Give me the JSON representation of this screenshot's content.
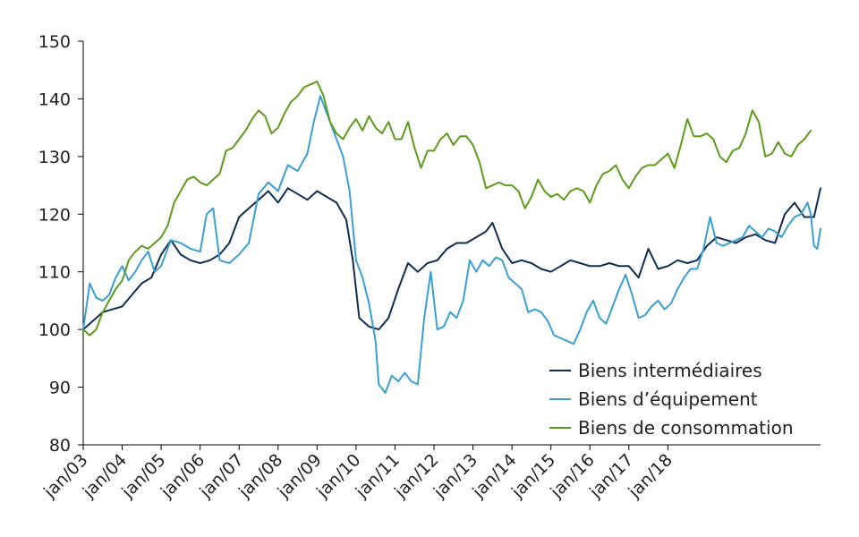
{
  "chart_data": {
    "type": "line",
    "title": "",
    "xlabel": "",
    "ylabel": "",
    "ylim": [
      80,
      150
    ],
    "yticks": [
      "80",
      "90",
      "100",
      "110",
      "120",
      "130",
      "140",
      "150"
    ],
    "xticks": [
      "jan/03",
      "jan/04",
      "jan/05",
      "jan/06",
      "jan/07",
      "jan/08",
      "jan/09",
      "jan/10",
      "jan/11",
      "jan/12",
      "jan/13",
      "jan/14",
      "jan/15",
      "jan/16",
      "jan/17",
      "jan/18"
    ],
    "x_unit": "months since jan/03",
    "legend_position": "bottom-right",
    "grid": false,
    "series": [
      {
        "name": "Biens intermédiaires",
        "color": "#0f2d52",
        "points": [
          [
            0,
            100
          ],
          [
            3,
            101.5
          ],
          [
            6,
            103
          ],
          [
            9,
            103.5
          ],
          [
            12,
            104
          ],
          [
            15,
            106
          ],
          [
            18,
            108
          ],
          [
            21,
            109
          ],
          [
            24,
            113
          ],
          [
            27,
            115.5
          ],
          [
            30,
            113
          ],
          [
            33,
            112
          ],
          [
            36,
            111.5
          ],
          [
            39,
            112
          ],
          [
            42,
            113
          ],
          [
            45,
            115
          ],
          [
            48,
            119.5
          ],
          [
            51,
            121
          ],
          [
            54,
            122.5
          ],
          [
            57,
            124
          ],
          [
            60,
            122
          ],
          [
            63,
            124.5
          ],
          [
            66,
            123.5
          ],
          [
            69,
            122.5
          ],
          [
            72,
            124
          ],
          [
            75,
            123
          ],
          [
            78,
            122
          ],
          [
            81,
            119
          ],
          [
            83,
            112
          ],
          [
            85,
            102
          ],
          [
            88,
            100.5
          ],
          [
            91,
            100
          ],
          [
            94,
            102
          ],
          [
            97,
            107
          ],
          [
            100,
            111.5
          ],
          [
            103,
            110
          ],
          [
            106,
            111.5
          ],
          [
            109,
            112
          ],
          [
            112,
            114
          ],
          [
            115,
            115
          ],
          [
            118,
            115
          ],
          [
            121,
            116
          ],
          [
            124,
            117
          ],
          [
            126,
            118.5
          ],
          [
            129,
            114
          ],
          [
            132,
            111.5
          ],
          [
            135,
            112
          ],
          [
            138,
            111.5
          ],
          [
            141,
            110.5
          ],
          [
            144,
            110
          ],
          [
            147,
            111
          ],
          [
            150,
            112
          ],
          [
            153,
            111.5
          ],
          [
            156,
            111
          ],
          [
            159,
            111
          ],
          [
            162,
            111.5
          ],
          [
            165,
            111
          ],
          [
            168,
            111
          ],
          [
            171,
            109
          ],
          [
            174,
            114
          ],
          [
            177,
            110.5
          ],
          [
            180,
            111
          ],
          [
            183,
            112
          ],
          [
            186,
            111.5
          ],
          [
            189,
            112
          ],
          [
            192,
            114.5
          ],
          [
            195,
            116
          ],
          [
            198,
            115.5
          ],
          [
            201,
            115
          ],
          [
            204,
            116
          ],
          [
            207,
            116.5
          ],
          [
            210,
            115.5
          ],
          [
            213,
            115
          ],
          [
            216,
            120
          ],
          [
            219,
            122
          ],
          [
            222,
            119.5
          ],
          [
            225,
            119.5
          ],
          [
            227,
            124.5
          ]
        ]
      },
      {
        "name": "Biens d’équipement",
        "color": "#3a9fd1",
        "points": [
          [
            0,
            100
          ],
          [
            2,
            108
          ],
          [
            4,
            105.5
          ],
          [
            6,
            105
          ],
          [
            8,
            106
          ],
          [
            10,
            109
          ],
          [
            12,
            111
          ],
          [
            14,
            108.5
          ],
          [
            16,
            110
          ],
          [
            18,
            112
          ],
          [
            20,
            113.5
          ],
          [
            22,
            110
          ],
          [
            24,
            111
          ],
          [
            27,
            115.5
          ],
          [
            30,
            115
          ],
          [
            33,
            114
          ],
          [
            36,
            113.5
          ],
          [
            38,
            120
          ],
          [
            40,
            121
          ],
          [
            42,
            112
          ],
          [
            45,
            111.5
          ],
          [
            48,
            113
          ],
          [
            51,
            115
          ],
          [
            54,
            123.5
          ],
          [
            57,
            125.5
          ],
          [
            60,
            124
          ],
          [
            63,
            128.5
          ],
          [
            66,
            127.5
          ],
          [
            69,
            130.5
          ],
          [
            71,
            136
          ],
          [
            73,
            140.5
          ],
          [
            75,
            137.5
          ],
          [
            78,
            133
          ],
          [
            80,
            130
          ],
          [
            82,
            124
          ],
          [
            84,
            112
          ],
          [
            86,
            109
          ],
          [
            88,
            104.5
          ],
          [
            90,
            98
          ],
          [
            91,
            90.5
          ],
          [
            93,
            89
          ],
          [
            95,
            92
          ],
          [
            97,
            91
          ],
          [
            99,
            92.5
          ],
          [
            101,
            91
          ],
          [
            103,
            90.5
          ],
          [
            105,
            102
          ],
          [
            107,
            110
          ],
          [
            109,
            100
          ],
          [
            111,
            100.5
          ],
          [
            113,
            103
          ],
          [
            115,
            102
          ],
          [
            117,
            105
          ],
          [
            119,
            112
          ],
          [
            121,
            110
          ],
          [
            123,
            112
          ],
          [
            125,
            111
          ],
          [
            127,
            112.5
          ],
          [
            129,
            112
          ],
          [
            131,
            109
          ],
          [
            133,
            108
          ],
          [
            135,
            107
          ],
          [
            137,
            103
          ],
          [
            139,
            103.5
          ],
          [
            141,
            103
          ],
          [
            143,
            101.5
          ],
          [
            145,
            99
          ],
          [
            147,
            98.5
          ],
          [
            149,
            98
          ],
          [
            151,
            97.5
          ],
          [
            153,
            100
          ],
          [
            155,
            103
          ],
          [
            157,
            105
          ],
          [
            159,
            102
          ],
          [
            161,
            101
          ],
          [
            163,
            104
          ],
          [
            165,
            107
          ],
          [
            167,
            109.5
          ],
          [
            169,
            106
          ],
          [
            171,
            102
          ],
          [
            173,
            102.5
          ],
          [
            175,
            104
          ],
          [
            177,
            105
          ],
          [
            179,
            103.5
          ],
          [
            181,
            104.5
          ],
          [
            183,
            107
          ],
          [
            185,
            109
          ],
          [
            187,
            110.5
          ],
          [
            189,
            110.5
          ],
          [
            191,
            114
          ],
          [
            193,
            119.5
          ],
          [
            195,
            115
          ],
          [
            197,
            114.5
          ],
          [
            199,
            115
          ],
          [
            201,
            115.5
          ],
          [
            203,
            116
          ],
          [
            205,
            118
          ],
          [
            207,
            117
          ],
          [
            209,
            116
          ],
          [
            211,
            117.5
          ],
          [
            213,
            117
          ],
          [
            215,
            116
          ],
          [
            217,
            118
          ],
          [
            219,
            119.5
          ],
          [
            221,
            120
          ],
          [
            223,
            122
          ],
          [
            224,
            120
          ],
          [
            225,
            114.5
          ],
          [
            226,
            114
          ],
          [
            227,
            117.5
          ]
        ]
      },
      {
        "name": "Biens de consommation",
        "color": "#5c9c1c",
        "points": [
          [
            0,
            100
          ],
          [
            2,
            99
          ],
          [
            4,
            100
          ],
          [
            6,
            103
          ],
          [
            8,
            105
          ],
          [
            10,
            107
          ],
          [
            12,
            108.5
          ],
          [
            14,
            112
          ],
          [
            16,
            113.5
          ],
          [
            18,
            114.5
          ],
          [
            20,
            114
          ],
          [
            22,
            115
          ],
          [
            24,
            116
          ],
          [
            26,
            118
          ],
          [
            28,
            122
          ],
          [
            30,
            124
          ],
          [
            32,
            126
          ],
          [
            34,
            126.5
          ],
          [
            36,
            125.5
          ],
          [
            38,
            125
          ],
          [
            40,
            126
          ],
          [
            42,
            127
          ],
          [
            44,
            131
          ],
          [
            46,
            131.5
          ],
          [
            48,
            133
          ],
          [
            50,
            134.5
          ],
          [
            52,
            136.5
          ],
          [
            54,
            138
          ],
          [
            56,
            137
          ],
          [
            58,
            134
          ],
          [
            60,
            135
          ],
          [
            62,
            137.5
          ],
          [
            64,
            139.5
          ],
          [
            66,
            140.5
          ],
          [
            68,
            142
          ],
          [
            70,
            142.5
          ],
          [
            72,
            143
          ],
          [
            74,
            140.5
          ],
          [
            76,
            136
          ],
          [
            78,
            134
          ],
          [
            80,
            133
          ],
          [
            82,
            135
          ],
          [
            84,
            136.5
          ],
          [
            86,
            134.5
          ],
          [
            88,
            137
          ],
          [
            90,
            135
          ],
          [
            92,
            134
          ],
          [
            94,
            136
          ],
          [
            96,
            133
          ],
          [
            98,
            133
          ],
          [
            100,
            136
          ],
          [
            102,
            131.5
          ],
          [
            104,
            128
          ],
          [
            106,
            131
          ],
          [
            108,
            131
          ],
          [
            110,
            133
          ],
          [
            112,
            134
          ],
          [
            114,
            132
          ],
          [
            116,
            133.5
          ],
          [
            118,
            133.5
          ],
          [
            120,
            132
          ],
          [
            122,
            129
          ],
          [
            124,
            124.5
          ],
          [
            126,
            125
          ],
          [
            128,
            125.5
          ],
          [
            130,
            125
          ],
          [
            132,
            125
          ],
          [
            134,
            124
          ],
          [
            136,
            121
          ],
          [
            138,
            123
          ],
          [
            140,
            126
          ],
          [
            142,
            124
          ],
          [
            144,
            123
          ],
          [
            146,
            123.5
          ],
          [
            148,
            122.5
          ],
          [
            150,
            124
          ],
          [
            152,
            124.5
          ],
          [
            154,
            124
          ],
          [
            156,
            122
          ],
          [
            158,
            125
          ],
          [
            160,
            127
          ],
          [
            162,
            127.5
          ],
          [
            164,
            128.5
          ],
          [
            166,
            126
          ],
          [
            168,
            124.5
          ],
          [
            170,
            126.5
          ],
          [
            172,
            128
          ],
          [
            174,
            128.5
          ],
          [
            176,
            128.5
          ],
          [
            178,
            129.5
          ],
          [
            180,
            130.5
          ],
          [
            182,
            128
          ],
          [
            184,
            132
          ],
          [
            186,
            136.5
          ],
          [
            188,
            133.5
          ],
          [
            190,
            133.5
          ],
          [
            192,
            134
          ],
          [
            194,
            133
          ],
          [
            196,
            130
          ],
          [
            198,
            129
          ],
          [
            200,
            131
          ],
          [
            202,
            131.5
          ],
          [
            204,
            134
          ],
          [
            206,
            138
          ],
          [
            208,
            136
          ],
          [
            210,
            130
          ],
          [
            212,
            130.5
          ],
          [
            214,
            132.5
          ],
          [
            216,
            130.5
          ],
          [
            218,
            130
          ],
          [
            220,
            132
          ],
          [
            222,
            133
          ],
          [
            224,
            134.5
          ]
        ]
      }
    ]
  }
}
